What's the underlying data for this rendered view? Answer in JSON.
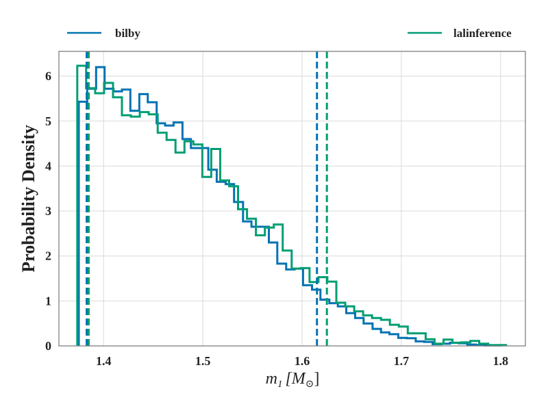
{
  "chart_data": {
    "type": "histogram",
    "xlabel_symbol": "m",
    "xlabel_sub": "1",
    "xlabel_unit": "[M",
    "xlabel_unit_sub": "⊙",
    "xlabel_close": "]",
    "ylabel": "Probability Density",
    "xlim": [
      1.355,
      1.825
    ],
    "ylim": [
      0,
      6.55
    ],
    "xticks": [
      1.4,
      1.5,
      1.6,
      1.7,
      1.8
    ],
    "xtick_labels": [
      "1.4",
      "1.5",
      "1.6",
      "1.7",
      "1.8"
    ],
    "yticks": [
      0,
      1,
      2,
      3,
      4,
      5,
      6
    ],
    "ytick_labels": [
      "0",
      "1",
      "2",
      "3",
      "4",
      "5",
      "6"
    ],
    "grid": true,
    "legend": {
      "placement": "top, above plot, spread horizontally"
    },
    "series": [
      {
        "name": "bilby",
        "color": "#0072b2",
        "line_style": "solid",
        "bin_edges": [
          1.375,
          1.3835,
          1.3925,
          1.401,
          1.41,
          1.4185,
          1.427,
          1.436,
          1.4445,
          1.4535,
          1.462,
          1.4705,
          1.4795,
          1.488,
          1.497,
          1.5055,
          1.514,
          1.523,
          1.5315,
          1.5405,
          1.549,
          1.5575,
          1.5665,
          1.575,
          1.584,
          1.5925,
          1.601,
          1.61,
          1.6185,
          1.6275,
          1.636,
          1.6445,
          1.6535,
          1.662,
          1.671,
          1.6795,
          1.688,
          1.697,
          1.7055,
          1.7145,
          1.723,
          1.7315,
          1.7405,
          1.749,
          1.758,
          1.7665,
          1.775,
          1.784,
          1.7925,
          1.8015
        ],
        "densities": [
          5.43,
          5.72,
          6.2,
          5.72,
          5.66,
          5.7,
          5.23,
          5.6,
          5.42,
          4.95,
          4.9,
          4.97,
          4.6,
          4.4,
          4.4,
          3.92,
          3.65,
          3.6,
          3.2,
          2.77,
          2.65,
          2.65,
          2.3,
          1.83,
          1.7,
          1.72,
          1.35,
          1.25,
          1.03,
          0.95,
          0.88,
          0.73,
          0.62,
          0.5,
          0.38,
          0.3,
          0.26,
          0.18,
          0.17,
          0.1,
          0.09,
          0.04,
          0.05,
          0.07,
          0.06,
          0.03,
          0.02,
          0.01,
          0.01
        ]
      },
      {
        "name": "lalinference",
        "color": "#009e73",
        "line_style": "solid",
        "bin_edges": [
          1.3735,
          1.3825,
          1.3915,
          1.4005,
          1.4095,
          1.4185,
          1.4275,
          1.4365,
          1.4455,
          1.4545,
          1.4635,
          1.4725,
          1.4815,
          1.4905,
          1.4995,
          1.5085,
          1.5175,
          1.5265,
          1.5355,
          1.5445,
          1.5535,
          1.5625,
          1.5715,
          1.5805,
          1.5895,
          1.5985,
          1.6075,
          1.6165,
          1.6255,
          1.6345,
          1.6435,
          1.6525,
          1.6615,
          1.6705,
          1.6795,
          1.6885,
          1.6975,
          1.7065,
          1.7155,
          1.7245,
          1.7335,
          1.7425,
          1.7515,
          1.7605,
          1.7695,
          1.7785,
          1.7875,
          1.7965,
          1.8055
        ],
        "densities": [
          6.23,
          5.73,
          5.62,
          5.85,
          5.53,
          5.13,
          5.1,
          5.2,
          5.15,
          4.74,
          4.58,
          4.3,
          4.55,
          4.48,
          3.76,
          4.38,
          3.68,
          3.55,
          3.04,
          2.83,
          2.46,
          2.63,
          2.7,
          2.12,
          1.72,
          1.73,
          1.42,
          1.53,
          1.43,
          0.96,
          0.88,
          0.77,
          0.68,
          0.62,
          0.58,
          0.47,
          0.43,
          0.28,
          0.28,
          0.15,
          0.05,
          0.14,
          0.07,
          0.08,
          0.11,
          0.05,
          0.02,
          0.02
        ]
      }
    ],
    "vertical_lines": [
      {
        "series": "bilby",
        "color": "#0072b2",
        "line_style": "dashed",
        "x": 1.383
      },
      {
        "series": "bilby",
        "color": "#0072b2",
        "line_style": "dashed",
        "x": 1.615
      },
      {
        "series": "lalinference",
        "color": "#009e73",
        "line_style": "dashed",
        "x": 1.385
      },
      {
        "series": "lalinference",
        "color": "#009e73",
        "line_style": "dashed",
        "x": 1.625
      }
    ]
  }
}
